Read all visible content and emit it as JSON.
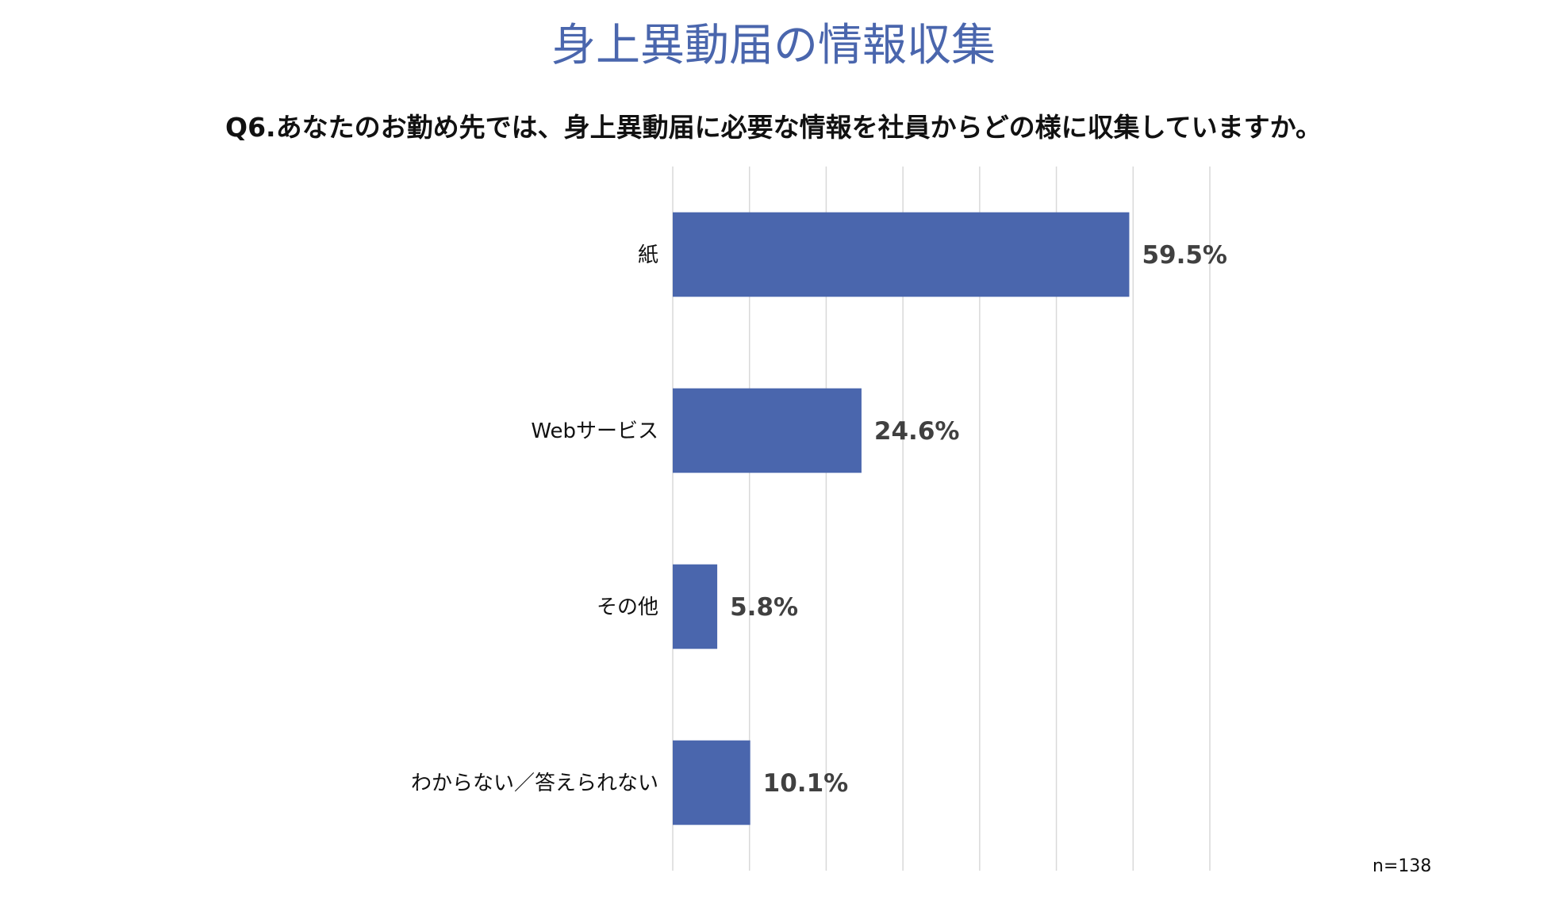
{
  "header": {
    "title": "身上異動届の情報収集",
    "question": "Q6.あなたのお勤め先では、身上異動届に必要な情報を社員からどの様に収集していますか。"
  },
  "footer": {
    "sample_size": "n=138"
  },
  "colors": {
    "bar": "#4a66ad",
    "title": "#4a66ad",
    "grid": "#d9d9d9"
  },
  "chart_data": {
    "type": "bar",
    "orientation": "horizontal",
    "categories": [
      "紙",
      "Webサービス",
      "その他",
      "わからない／答えられない"
    ],
    "values": [
      59.5,
      24.6,
      5.8,
      10.1
    ],
    "value_labels": [
      "59.5%",
      "24.6%",
      "5.8%",
      "10.1%"
    ],
    "xlim": [
      0,
      70
    ],
    "grid": true,
    "legend": "none"
  }
}
